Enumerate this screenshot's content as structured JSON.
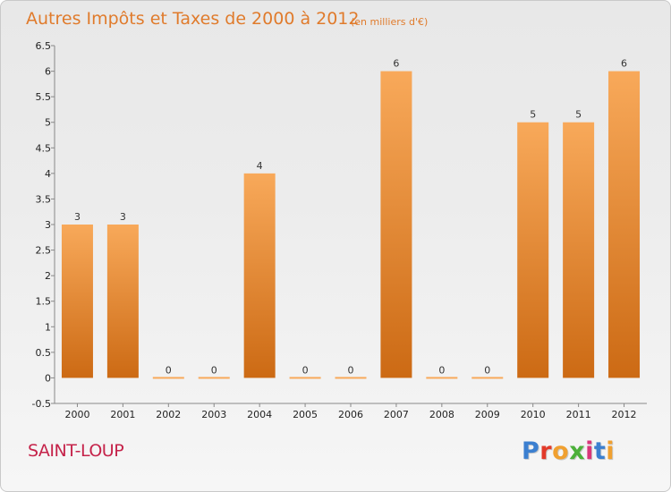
{
  "header": {
    "title": "Autres Impôts et Taxes de 2000 à 2012",
    "unit": "(en milliers d'€)"
  },
  "footer": {
    "commune": "SAINT-LOUP",
    "logo_letters": [
      "P",
      "r",
      "o",
      "x",
      "i",
      "t",
      "i"
    ]
  },
  "colors": {
    "bar_top": "#f8a95a",
    "bar_bottom": "#cc6a14",
    "title": "#e07b2c",
    "commune": "#c5234a",
    "logo": [
      "#3b7fd0",
      "#e23a2a",
      "#f0a030",
      "#4cb03a",
      "#d9367a",
      "#3b7fd0",
      "#f0a030"
    ]
  },
  "chart_data": {
    "type": "bar",
    "title": "Autres Impôts et Taxes de 2000 à 2012",
    "subtitle": "(en milliers d'€)",
    "categories": [
      "2000",
      "2001",
      "2002",
      "2003",
      "2004",
      "2005",
      "2006",
      "2007",
      "2008",
      "2009",
      "2010",
      "2011",
      "2012"
    ],
    "values": [
      3,
      3,
      0,
      0,
      4,
      0,
      0,
      6,
      0,
      0,
      5,
      5,
      6
    ],
    "data_labels": [
      "3",
      "3",
      "0",
      "0",
      "4",
      "0",
      "0",
      "6",
      "0",
      "0",
      "5",
      "5",
      "6"
    ],
    "y_ticks": [
      -0.5,
      0,
      0.5,
      1,
      1.5,
      2,
      2.5,
      3,
      3.5,
      4,
      4.5,
      5,
      5.5,
      6,
      6.5
    ],
    "y_tick_labels": [
      "-0.5",
      "0",
      "0.5",
      "1",
      "1.5",
      "2",
      "2.5",
      "3",
      "3.5",
      "4",
      "4.5",
      "5",
      "5.5",
      "6",
      "6.5"
    ],
    "ylim": [
      -0.5,
      6.5
    ],
    "grid": false,
    "legend": "none"
  }
}
